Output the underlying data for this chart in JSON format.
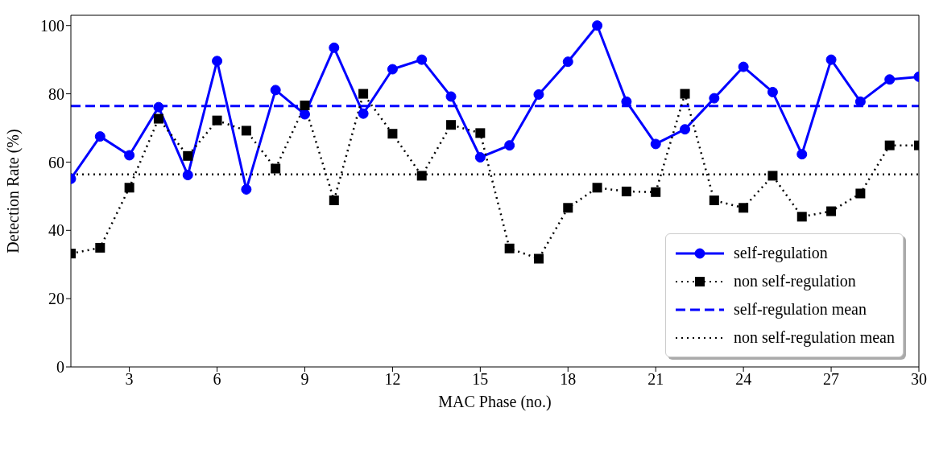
{
  "chart_data": {
    "type": "line",
    "xlabel": "MAC Phase (no.)",
    "ylabel": "Detection Rate (%)",
    "x": [
      1,
      2,
      3,
      4,
      5,
      6,
      7,
      8,
      9,
      10,
      11,
      12,
      13,
      14,
      15,
      16,
      17,
      18,
      19,
      20,
      21,
      22,
      23,
      24,
      25,
      26,
      27,
      28,
      29,
      30
    ],
    "xlim": [
      1,
      30
    ],
    "xticks": [
      3,
      6,
      9,
      12,
      15,
      18,
      21,
      24,
      27,
      30
    ],
    "ylim": [
      0,
      103
    ],
    "yticks": [
      0,
      20,
      40,
      60,
      80,
      100
    ],
    "grid": false,
    "legend": "bottom right",
    "series": [
      {
        "name": "self-regulation",
        "color": "#0000ff",
        "marker": "circle",
        "line_style": "solid",
        "values": [
          55.1,
          67.5,
          62,
          76.1,
          56.2,
          89.6,
          52,
          81.1,
          74,
          93.5,
          74.2,
          87.2,
          90,
          79.2,
          61.4,
          64.9,
          79.8,
          89.4,
          100,
          77.7,
          65.3,
          69.6,
          78.7,
          87.9,
          80.5,
          62.3,
          90,
          77.7,
          84.2,
          85
        ]
      },
      {
        "name": "non self-regulation",
        "color": "#000000",
        "marker": "square",
        "line_style": "dotted",
        "values": [
          33.2,
          34.9,
          52.5,
          72.7,
          61.8,
          72.2,
          69.2,
          58.1,
          76.6,
          48.8,
          80,
          68.3,
          56,
          70.9,
          68.5,
          34.7,
          31.7,
          46.6,
          52.5,
          51.4,
          51.2,
          80,
          48.8,
          46.6,
          56,
          44,
          45.6,
          50.8,
          64.9,
          64.9
        ]
      }
    ],
    "ref_lines": [
      {
        "axis": "y",
        "value": 76.4,
        "label": "self-regulation mean",
        "color": "#0000ff",
        "line_style": "dashed"
      },
      {
        "axis": "y",
        "value": 56.4,
        "label": "non self-regulation mean",
        "color": "#000000",
        "line_style": "dotted"
      }
    ]
  }
}
